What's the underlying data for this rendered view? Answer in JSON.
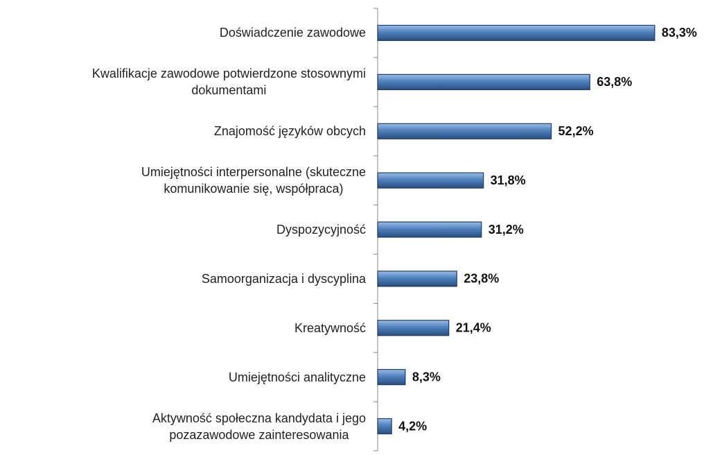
{
  "chart_data": {
    "type": "barh",
    "categories": [
      "Doświadczenie zawodowe",
      "Kwalifikacje zawodowe potwierdzone stosownymi\ndokumentami",
      "Znajomość języków obcych",
      "Umiejętności interpersonalne (skuteczne\nkomunikowanie się, współpraca)",
      "Dyspozycyjność",
      "Samoorganizacja i dyscyplina",
      "Kreatywność",
      "Umiejętności analityczne",
      "Aktywność społeczna kandydata i jego\npozazawodowe zainteresowania"
    ],
    "values": [
      83.3,
      63.8,
      52.2,
      31.8,
      31.2,
      23.8,
      21.4,
      8.3,
      4.2
    ],
    "value_labels": [
      "83,3%",
      "63,8%",
      "52,2%",
      "31,8%",
      "31,2%",
      "23,8%",
      "21,4%",
      "8,3%",
      "4,2%"
    ],
    "color": "#4f81bd",
    "xlim": [
      0,
      100
    ]
  }
}
